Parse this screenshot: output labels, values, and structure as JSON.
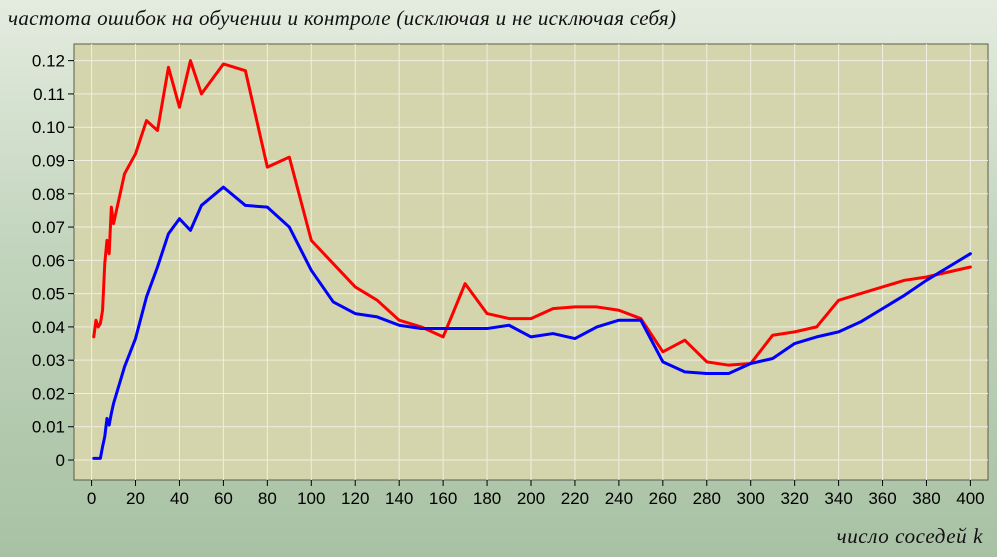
{
  "chart_data": {
    "type": "line",
    "title": "частота ошибок на обучении и контроле (исключая и не исключая себя)",
    "xlabel": "число соседей k",
    "ylabel": "",
    "xlim": [
      -8,
      408
    ],
    "ylim": [
      -0.006,
      0.125
    ],
    "x_ticks": [
      0,
      20,
      40,
      60,
      80,
      100,
      120,
      140,
      160,
      180,
      200,
      220,
      240,
      260,
      280,
      300,
      320,
      340,
      360,
      380,
      400
    ],
    "x_tick_labels": [
      "0",
      "20",
      "40",
      "60",
      "80",
      "100",
      "120",
      "140",
      "160",
      "180",
      "200",
      "220",
      "240",
      "260",
      "280",
      "300",
      "320",
      "340",
      "360",
      "380",
      "400"
    ],
    "y_ticks": [
      0,
      0.01,
      0.02,
      0.03,
      0.04,
      0.05,
      0.06,
      0.07,
      0.08,
      0.09,
      0.1,
      0.11,
      0.12
    ],
    "y_tick_labels": [
      "0",
      "0.01",
      "0.02",
      "0.03",
      "0.04",
      "0.05",
      "0.06",
      "0.07",
      "0.08",
      "0.09",
      "0.10",
      "0.11",
      "0.12"
    ],
    "grid": true,
    "legend": "none",
    "colors": {
      "plot_background": "#d5d5ad",
      "grid": "#eeeee2",
      "series_red": "#ff0000",
      "series_blue": "#0000ff"
    },
    "series": [
      {
        "color": "#ff0000",
        "x": [
          1,
          2,
          3,
          4,
          5,
          6,
          7,
          8,
          9,
          10,
          15,
          20,
          25,
          30,
          35,
          40,
          45,
          50,
          60,
          70,
          80,
          90,
          100,
          110,
          120,
          130,
          140,
          150,
          160,
          170,
          180,
          190,
          200,
          210,
          220,
          230,
          240,
          250,
          260,
          270,
          280,
          290,
          300,
          310,
          320,
          330,
          340,
          350,
          360,
          370,
          380,
          390,
          400
        ],
        "y": [
          0.037,
          0.042,
          0.04,
          0.041,
          0.045,
          0.059,
          0.066,
          0.062,
          0.076,
          0.071,
          0.086,
          0.092,
          0.102,
          0.099,
          0.118,
          0.106,
          0.12,
          0.11,
          0.119,
          0.117,
          0.088,
          0.091,
          0.066,
          0.059,
          0.052,
          0.048,
          0.042,
          0.04,
          0.037,
          0.053,
          0.044,
          0.0425,
          0.0425,
          0.0455,
          0.046,
          0.046,
          0.045,
          0.0425,
          0.0325,
          0.036,
          0.0295,
          0.0285,
          0.029,
          0.0375,
          0.0385,
          0.04,
          0.048,
          0.05,
          0.052,
          0.054,
          0.055,
          0.0565,
          0.058
        ]
      },
      {
        "color": "#0000ff",
        "x": [
          1,
          2,
          3,
          4,
          5,
          6,
          7,
          8,
          9,
          10,
          15,
          20,
          25,
          30,
          35,
          40,
          45,
          50,
          60,
          70,
          80,
          90,
          100,
          110,
          120,
          130,
          140,
          150,
          160,
          170,
          180,
          190,
          200,
          210,
          220,
          230,
          240,
          250,
          260,
          270,
          280,
          290,
          300,
          310,
          320,
          330,
          340,
          350,
          360,
          370,
          380,
          390,
          400
        ],
        "y": [
          0.0005,
          0.0005,
          0.0005,
          0.0005,
          0.004,
          0.007,
          0.0125,
          0.0105,
          0.014,
          0.017,
          0.028,
          0.0365,
          0.049,
          0.058,
          0.068,
          0.0725,
          0.069,
          0.0765,
          0.082,
          0.0765,
          0.076,
          0.07,
          0.057,
          0.0475,
          0.044,
          0.043,
          0.0405,
          0.0395,
          0.0395,
          0.0395,
          0.0395,
          0.0405,
          0.037,
          0.038,
          0.0365,
          0.04,
          0.042,
          0.042,
          0.0295,
          0.0265,
          0.026,
          0.026,
          0.029,
          0.0305,
          0.035,
          0.037,
          0.0385,
          0.0415,
          0.0455,
          0.0495,
          0.054,
          0.058,
          0.062
        ]
      }
    ]
  }
}
